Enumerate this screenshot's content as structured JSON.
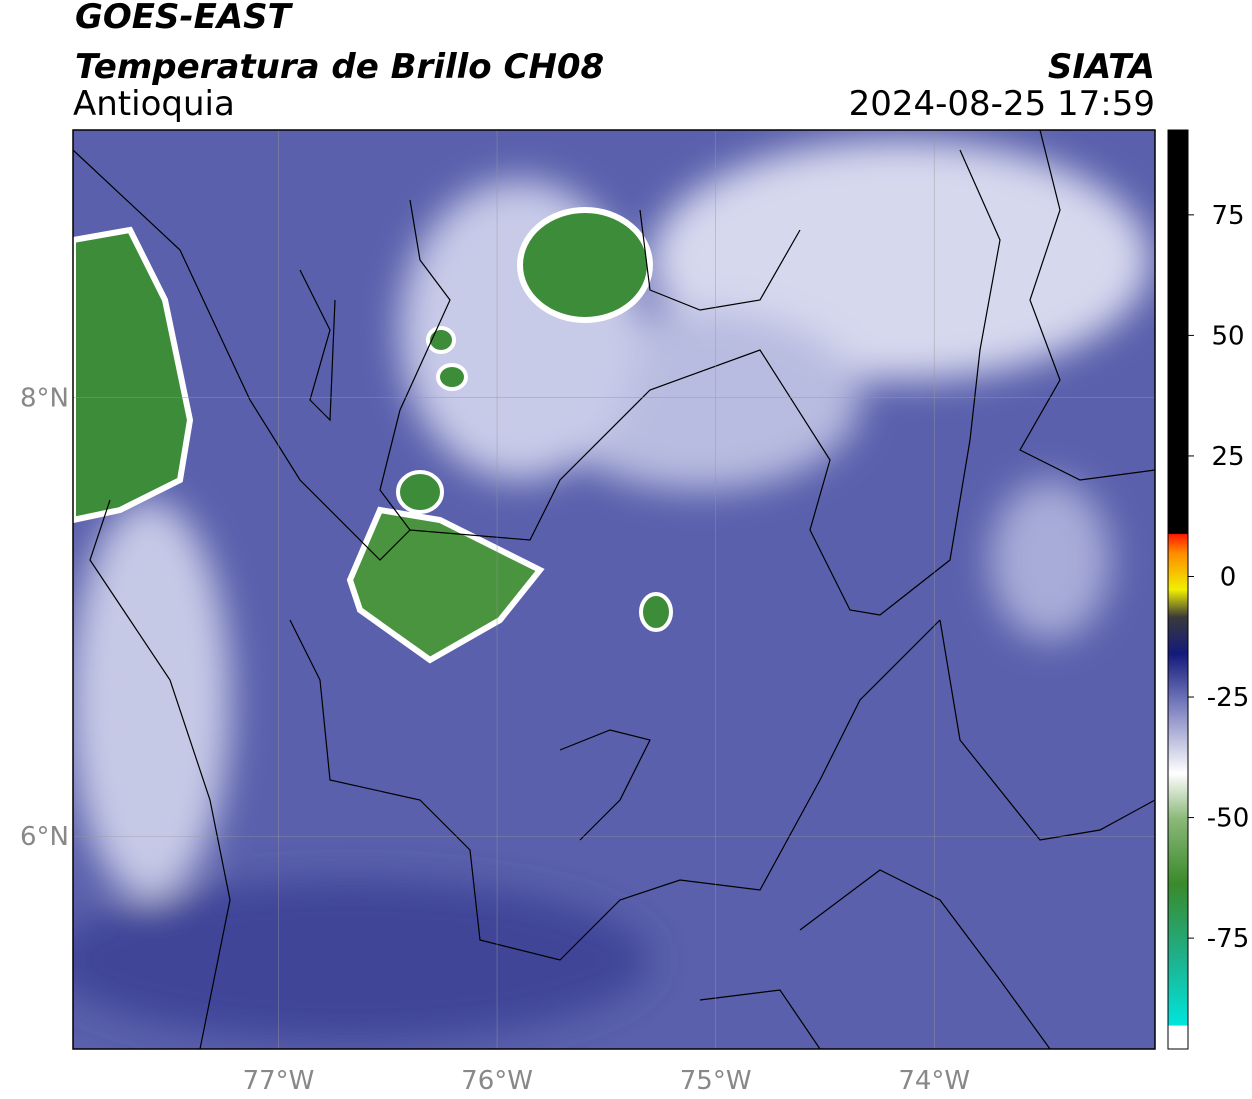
{
  "header": {
    "satellite": "GOES-EAST",
    "product": "Temperatura de Brillo CH08",
    "region": "Antioquia",
    "source": "SIATA",
    "datetime": "2024-08-25 17:59"
  },
  "map": {
    "lonlim": [
      -77.94,
      -72.99
    ],
    "latlim": [
      5.03,
      9.22
    ],
    "lon_ticks": [
      {
        "value": -77,
        "label": "77°W"
      },
      {
        "value": -76,
        "label": "76°W"
      },
      {
        "value": -75,
        "label": "75°W"
      },
      {
        "value": -74,
        "label": "74°W"
      }
    ],
    "lat_ticks": [
      {
        "value": 8,
        "label": "8°N"
      },
      {
        "value": 6,
        "label": "6°N"
      }
    ]
  },
  "colorbar": {
    "lim": [
      -98,
      92.6
    ],
    "ticks": [
      75,
      50,
      25,
      0,
      -25,
      -50,
      -75
    ]
  }
}
